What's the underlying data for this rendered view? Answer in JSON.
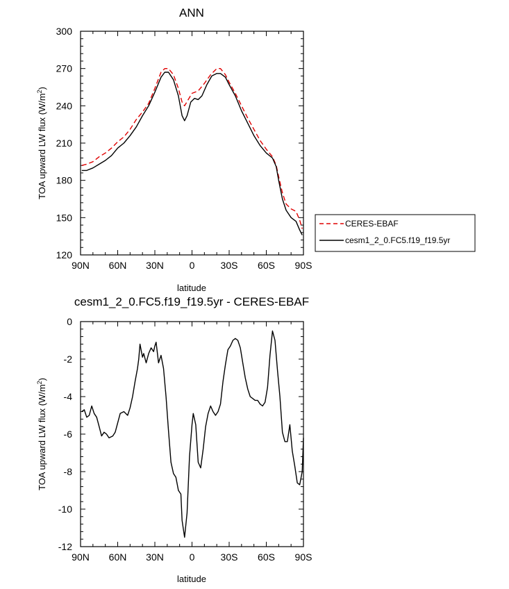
{
  "chart_data": [
    {
      "type": "line",
      "title": "ANN",
      "xlabel": "latitude",
      "ylabel": "TOA upward LW flux (W/m",
      "ylabel_superscript": "2",
      "ylabel_suffix": ")",
      "xlim": [
        90,
        -90
      ],
      "ylim": [
        120,
        300
      ],
      "x_ticks": [
        {
          "value": 90,
          "label": "90N"
        },
        {
          "value": 60,
          "label": "60N"
        },
        {
          "value": 30,
          "label": "30N"
        },
        {
          "value": 0,
          "label": "0"
        },
        {
          "value": -30,
          "label": "30S"
        },
        {
          "value": -60,
          "label": "60S"
        },
        {
          "value": -90,
          "label": "90S"
        }
      ],
      "y_ticks": [
        120,
        150,
        180,
        210,
        240,
        270,
        300
      ],
      "legend_position": "right",
      "series": [
        {
          "name": "CERES-EBAF",
          "color": "#e00000",
          "dash": "dashed",
          "points": [
            [
              89,
              192
            ],
            [
              85,
              193
            ],
            [
              80,
              195
            ],
            [
              75,
              199
            ],
            [
              70,
              202
            ],
            [
              65,
              206
            ],
            [
              60,
              211
            ],
            [
              55,
              215
            ],
            [
              50,
              221
            ],
            [
              45,
              229
            ],
            [
              40,
              235
            ],
            [
              35,
              242
            ],
            [
              30,
              254
            ],
            [
              25,
              267
            ],
            [
              22,
              270
            ],
            [
              19,
              270
            ],
            [
              15,
              265
            ],
            [
              11,
              254
            ],
            [
              8,
              243
            ],
            [
              6,
              240
            ],
            [
              3,
              245
            ],
            [
              0,
              250
            ],
            [
              -5,
              252
            ],
            [
              -10,
              258
            ],
            [
              -15,
              265
            ],
            [
              -20,
              270
            ],
            [
              -23,
              270
            ],
            [
              -27,
              265
            ],
            [
              -30,
              259
            ],
            [
              -35,
              250
            ],
            [
              -40,
              240
            ],
            [
              -45,
              230
            ],
            [
              -50,
              221
            ],
            [
              -55,
              212
            ],
            [
              -60,
              205
            ],
            [
              -65,
              199
            ],
            [
              -68,
              192
            ],
            [
              -70,
              183
            ],
            [
              -73,
              170
            ],
            [
              -76,
              161
            ],
            [
              -80,
              157
            ],
            [
              -84,
              155
            ],
            [
              -87,
              148
            ],
            [
              -89,
              141
            ]
          ]
        },
        {
          "name": "cesm1_2_0.FC5.f19_f19.5yr",
          "color": "#000000",
          "dash": "solid",
          "points": [
            [
              89,
              188
            ],
            [
              85,
              188
            ],
            [
              80,
              190
            ],
            [
              75,
              193
            ],
            [
              70,
              196
            ],
            [
              65,
              200
            ],
            [
              60,
              206
            ],
            [
              55,
              210
            ],
            [
              50,
              216
            ],
            [
              45,
              223
            ],
            [
              40,
              232
            ],
            [
              35,
              240
            ],
            [
              30,
              251
            ],
            [
              25,
              263
            ],
            [
              22,
              267
            ],
            [
              19,
              267
            ],
            [
              15,
              261
            ],
            [
              11,
              248
            ],
            [
              8,
              232
            ],
            [
              6,
              228
            ],
            [
              4,
              232
            ],
            [
              1,
              243
            ],
            [
              -2,
              246
            ],
            [
              -5,
              245
            ],
            [
              -8,
              248
            ],
            [
              -12,
              257
            ],
            [
              -16,
              264
            ],
            [
              -20,
              266
            ],
            [
              -23,
              266
            ],
            [
              -27,
              263
            ],
            [
              -30,
              257
            ],
            [
              -35,
              248
            ],
            [
              -40,
              236
            ],
            [
              -45,
              226
            ],
            [
              -50,
              216
            ],
            [
              -55,
              208
            ],
            [
              -60,
              202
            ],
            [
              -65,
              198
            ],
            [
              -68,
              191
            ],
            [
              -70,
              180
            ],
            [
              -73,
              165
            ],
            [
              -76,
              156
            ],
            [
              -80,
              150
            ],
            [
              -84,
              147
            ],
            [
              -87,
              140
            ],
            [
              -89,
              136
            ]
          ]
        }
      ]
    },
    {
      "type": "line",
      "title": "cesm1_2_0.FC5.f19_f19.5yr - CERES-EBAF",
      "xlabel": "latitude",
      "ylabel": "TOA upward LW flux (W/m",
      "ylabel_superscript": "2",
      "ylabel_suffix": ")",
      "xlim": [
        90,
        -90
      ],
      "ylim": [
        -12,
        0
      ],
      "x_ticks": [
        {
          "value": 90,
          "label": "90N"
        },
        {
          "value": 60,
          "label": "60N"
        },
        {
          "value": 30,
          "label": "30N"
        },
        {
          "value": 0,
          "label": "0"
        },
        {
          "value": -30,
          "label": "30S"
        },
        {
          "value": -60,
          "label": "60S"
        },
        {
          "value": -90,
          "label": "90S"
        }
      ],
      "y_ticks": [
        0,
        -2,
        -4,
        -6,
        -8,
        -10,
        -12
      ],
      "series": [
        {
          "color": "#000000",
          "dash": "solid",
          "points": [
            [
              89,
              -4.8
            ],
            [
              87,
              -4.7
            ],
            [
              85,
              -5.1
            ],
            [
              83,
              -5.0
            ],
            [
              81,
              -4.5
            ],
            [
              79,
              -4.9
            ],
            [
              77,
              -5.1
            ],
            [
              75,
              -5.6
            ],
            [
              73,
              -6.1
            ],
            [
              71,
              -5.9
            ],
            [
              69,
              -6.0
            ],
            [
              67,
              -6.2
            ],
            [
              64,
              -6.1
            ],
            [
              62,
              -5.9
            ],
            [
              60,
              -5.4
            ],
            [
              58,
              -4.9
            ],
            [
              55,
              -4.8
            ],
            [
              52,
              -5.0
            ],
            [
              50,
              -4.6
            ],
            [
              48,
              -4.0
            ],
            [
              46,
              -3.2
            ],
            [
              44,
              -2.5
            ],
            [
              43,
              -2.0
            ],
            [
              42,
              -1.2
            ],
            [
              40,
              -1.9
            ],
            [
              39,
              -1.7
            ],
            [
              37,
              -2.2
            ],
            [
              35,
              -1.7
            ],
            [
              33,
              -1.4
            ],
            [
              31,
              -1.6
            ],
            [
              30,
              -1.3
            ],
            [
              29,
              -1.1
            ],
            [
              27,
              -2.2
            ],
            [
              25,
              -1.8
            ],
            [
              23,
              -2.5
            ],
            [
              21,
              -4.0
            ],
            [
              19,
              -5.8
            ],
            [
              17,
              -7.5
            ],
            [
              15,
              -8.1
            ],
            [
              13,
              -8.3
            ],
            [
              11,
              -9.0
            ],
            [
              9,
              -9.2
            ],
            [
              8,
              -10.6
            ],
            [
              6,
              -11.5
            ],
            [
              4,
              -10.2
            ],
            [
              2,
              -7.2
            ],
            [
              0,
              -5.5
            ],
            [
              -1,
              -4.9
            ],
            [
              -3,
              -5.5
            ],
            [
              -5,
              -7.5
            ],
            [
              -7,
              -7.8
            ],
            [
              -9,
              -6.8
            ],
            [
              -11,
              -5.6
            ],
            [
              -13,
              -4.9
            ],
            [
              -15,
              -4.5
            ],
            [
              -17,
              -4.8
            ],
            [
              -19,
              -5.0
            ],
            [
              -21,
              -4.8
            ],
            [
              -23,
              -4.4
            ],
            [
              -25,
              -3.2
            ],
            [
              -27,
              -2.3
            ],
            [
              -29,
              -1.5
            ],
            [
              -31,
              -1.3
            ],
            [
              -33,
              -1.0
            ],
            [
              -35,
              -0.9
            ],
            [
              -37,
              -1.0
            ],
            [
              -39,
              -1.4
            ],
            [
              -41,
              -2.2
            ],
            [
              -43,
              -3.0
            ],
            [
              -45,
              -3.6
            ],
            [
              -47,
              -4.0
            ],
            [
              -49,
              -4.1
            ],
            [
              -51,
              -4.2
            ],
            [
              -53,
              -4.2
            ],
            [
              -55,
              -4.4
            ],
            [
              -57,
              -4.5
            ],
            [
              -59,
              -4.3
            ],
            [
              -61,
              -3.5
            ],
            [
              -63,
              -1.8
            ],
            [
              -65,
              -0.5
            ],
            [
              -67,
              -1.0
            ],
            [
              -69,
              -2.6
            ],
            [
              -71,
              -4.0
            ],
            [
              -73,
              -5.9
            ],
            [
              -75,
              -6.4
            ],
            [
              -77,
              -6.4
            ],
            [
              -79,
              -5.5
            ],
            [
              -81,
              -6.9
            ],
            [
              -83,
              -7.7
            ],
            [
              -85,
              -8.6
            ],
            [
              -87,
              -8.7
            ],
            [
              -89,
              -8.0
            ],
            [
              -90,
              -6.2
            ]
          ]
        }
      ]
    }
  ]
}
